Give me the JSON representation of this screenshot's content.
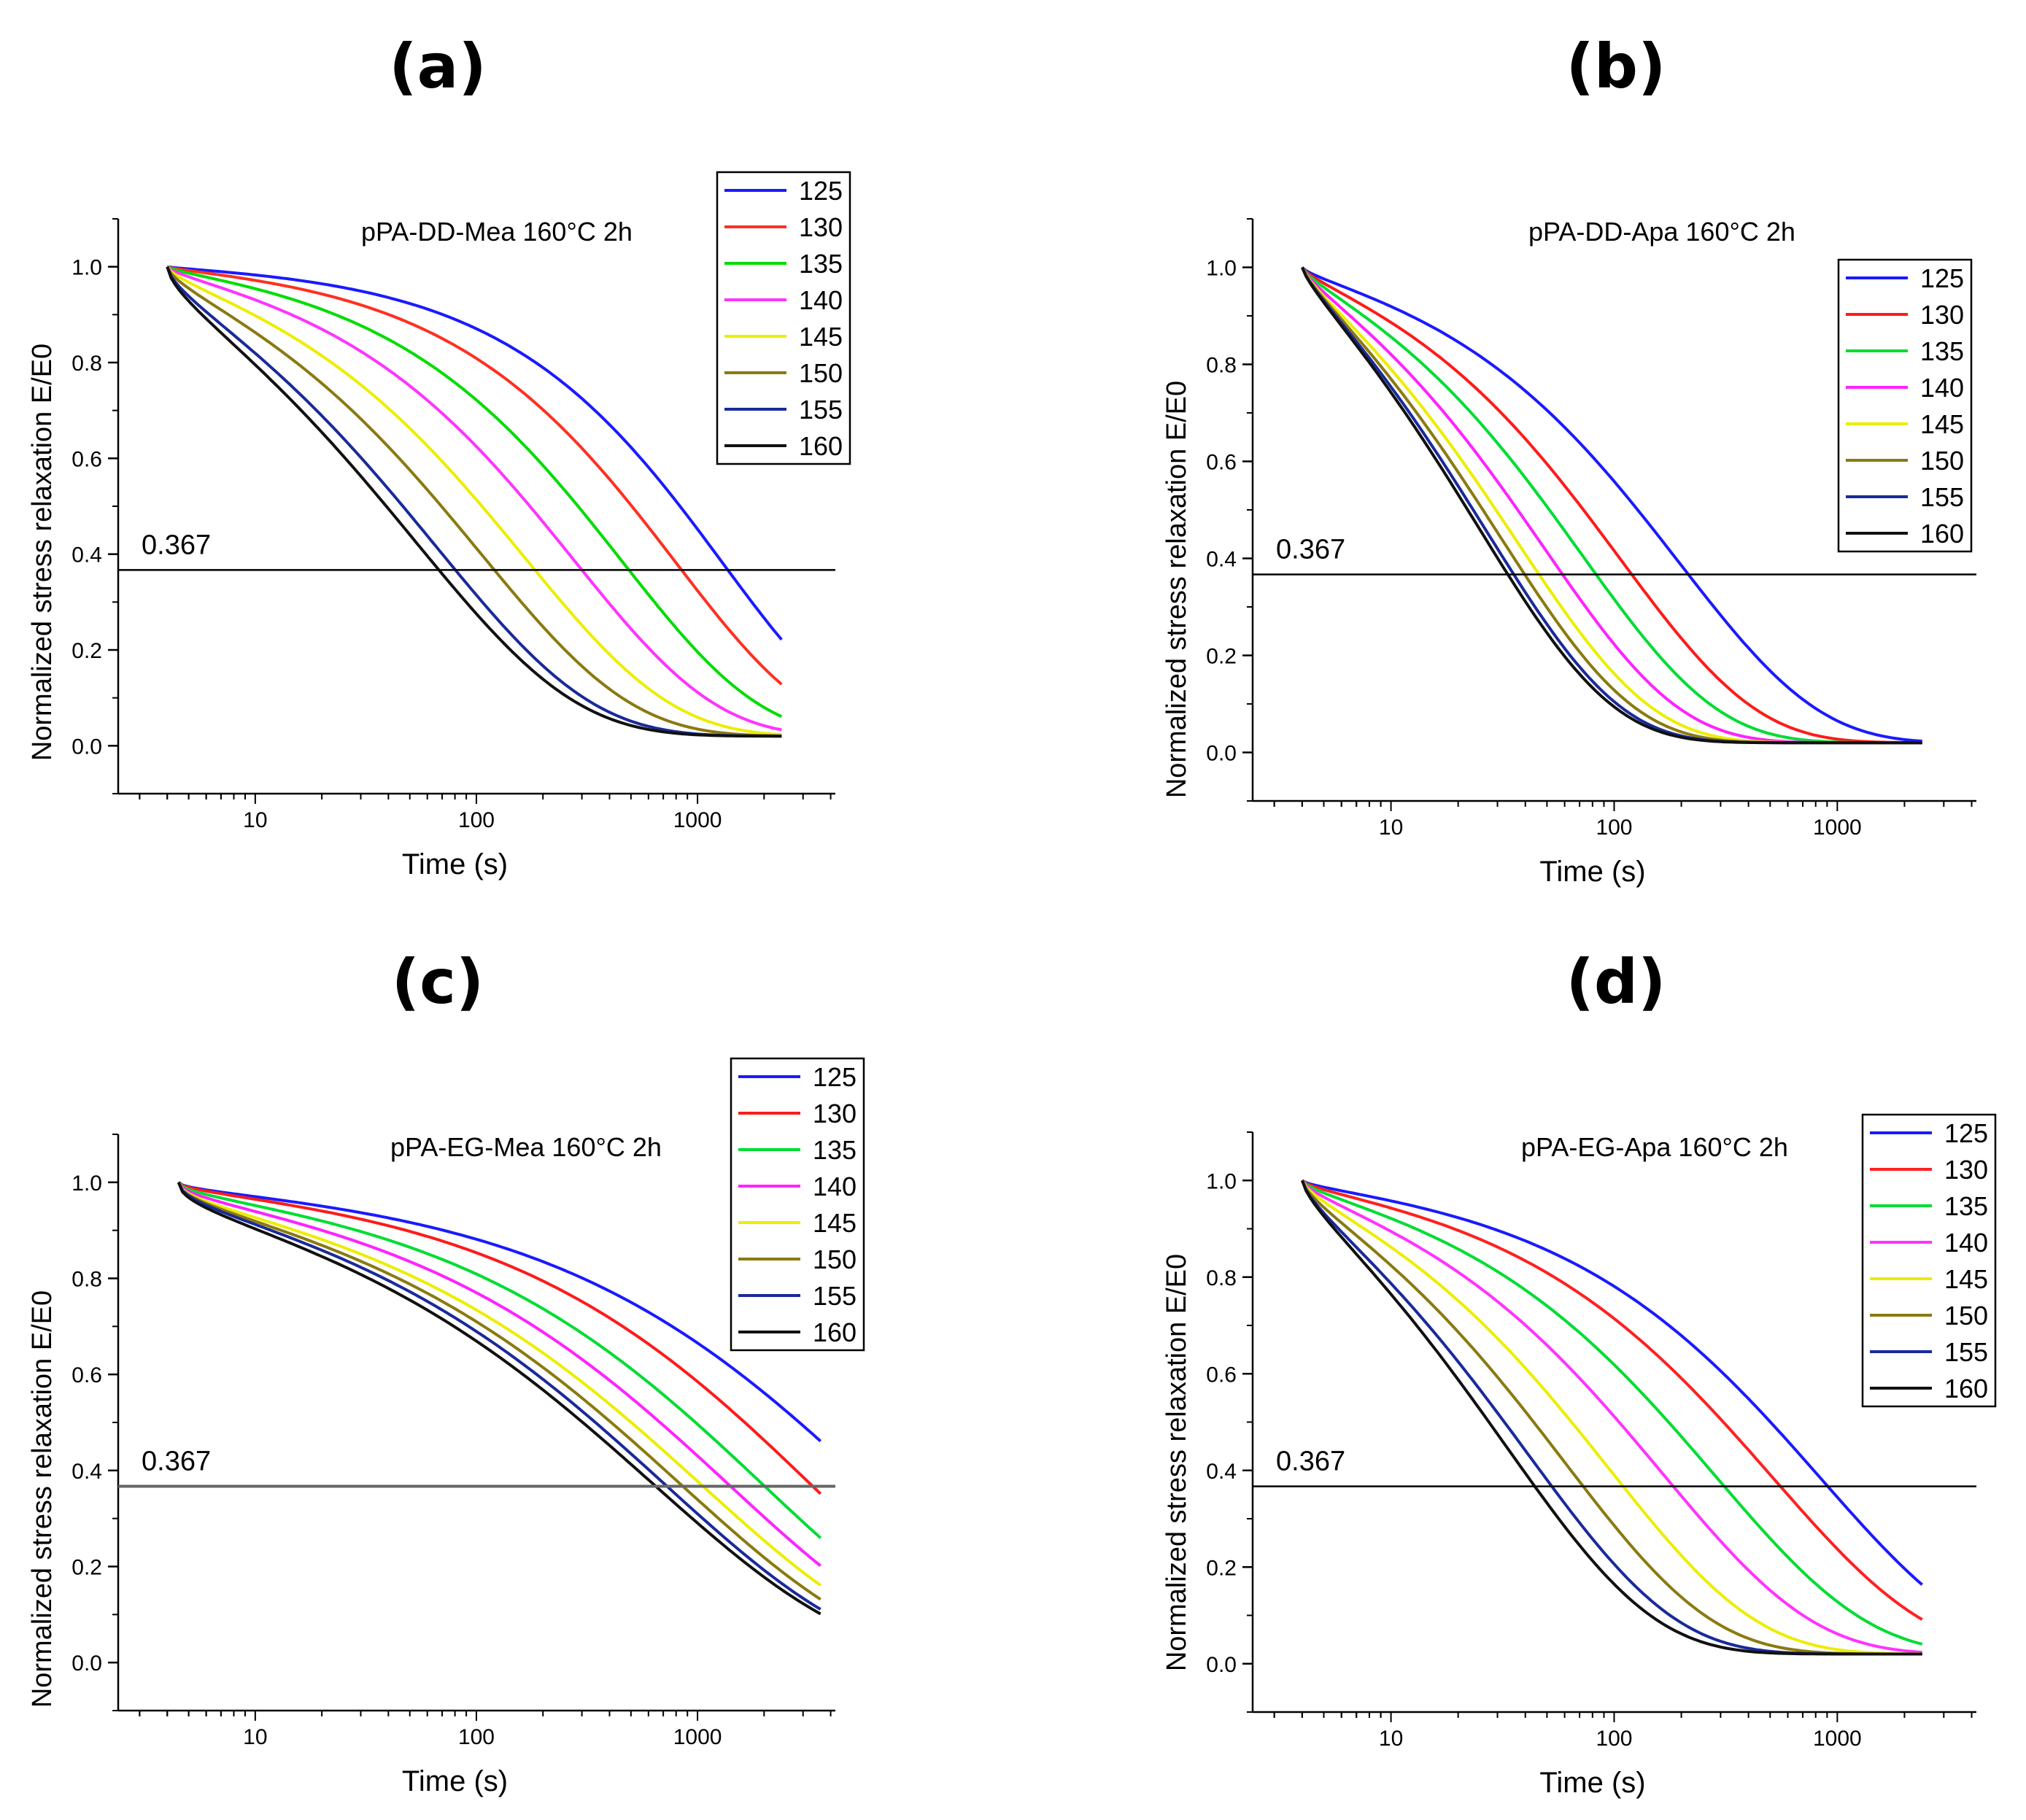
{
  "chart_data": [
    {
      "panel_label": "(a)",
      "type": "line",
      "title": "pPA-DD-Mea 160°C 2h",
      "xlabel": "Time (s)",
      "ylabel": "Normalized stress relaxation E/E0",
      "xscale": "log",
      "xlim": [
        2.4,
        4200
      ],
      "ylim": [
        -0.1,
        1.1
      ],
      "x_ticks": [
        10,
        100,
        1000
      ],
      "x_tick_labels": [
        "10",
        "100",
        "1000"
      ],
      "y_ticks": [
        0,
        0.2,
        0.4,
        0.6,
        0.8,
        1.0
      ],
      "y_tick_labels": [
        "0.0",
        "0.2",
        "0.4",
        "0.6",
        "0.8",
        "1.0"
      ],
      "reference_line": {
        "y": 0.367,
        "label": "0.367"
      },
      "legend_position": "top-right",
      "x_range": [
        4,
        2400
      ],
      "series": [
        {
          "name": "125",
          "color": "#1a1aff",
          "tau": 1300,
          "beta": 0.75,
          "offset": 0.02
        },
        {
          "name": "130",
          "color": "#ff3020",
          "tau": 800,
          "beta": 0.72,
          "offset": 0.02
        },
        {
          "name": "135",
          "color": "#00dd00",
          "tau": 460,
          "beta": 0.7,
          "offset": 0.02
        },
        {
          "name": "140",
          "color": "#ff33ff",
          "tau": 280,
          "beta": 0.68,
          "offset": 0.02
        },
        {
          "name": "145",
          "color": "#eded00",
          "tau": 170,
          "beta": 0.66,
          "offset": 0.02
        },
        {
          "name": "150",
          "color": "#8a7a10",
          "tau": 110,
          "beta": 0.65,
          "offset": 0.02
        },
        {
          "name": "155",
          "color": "#1a2a9a",
          "tau": 72,
          "beta": 0.64,
          "offset": 0.02
        },
        {
          "name": "160",
          "color": "#111111",
          "tau": 60,
          "beta": 0.63,
          "offset": 0.02
        }
      ]
    },
    {
      "panel_label": "(b)",
      "type": "line",
      "title": "pPA-DD-Apa 160°C 2h",
      "xlabel": "Time (s)",
      "ylabel": "Normalized stress relaxation E/E0",
      "xscale": "log",
      "xlim": [
        2.4,
        4200
      ],
      "ylim": [
        -0.1,
        1.1
      ],
      "x_ticks": [
        10,
        100,
        1000
      ],
      "x_tick_labels": [
        "10",
        "100",
        "1000"
      ],
      "y_ticks": [
        0,
        0.2,
        0.4,
        0.6,
        0.8,
        1.0
      ],
      "y_tick_labels": [
        "0.0",
        "0.2",
        "0.4",
        "0.6",
        "0.8",
        "1.0"
      ],
      "reference_line": {
        "y": 0.367,
        "label": "0.367"
      },
      "legend_position": "top-right",
      "x_range": [
        4,
        2400
      ],
      "series": [
        {
          "name": "125",
          "color": "#1a1aff",
          "tau": 200,
          "beta": 0.7,
          "offset": 0.02
        },
        {
          "name": "130",
          "color": "#ff1a1a",
          "tau": 110,
          "beta": 0.72,
          "offset": 0.02
        },
        {
          "name": "135",
          "color": "#00dd33",
          "tau": 75,
          "beta": 0.73,
          "offset": 0.02
        },
        {
          "name": "140",
          "color": "#ff22ff",
          "tau": 52,
          "beta": 0.74,
          "offset": 0.02
        },
        {
          "name": "145",
          "color": "#eded00",
          "tau": 40,
          "beta": 0.75,
          "offset": 0.02
        },
        {
          "name": "150",
          "color": "#8a7a10",
          "tau": 34,
          "beta": 0.76,
          "offset": 0.02
        },
        {
          "name": "155",
          "color": "#1a2a9a",
          "tau": 30,
          "beta": 0.77,
          "offset": 0.02
        },
        {
          "name": "160",
          "color": "#111111",
          "tau": 28,
          "beta": 0.77,
          "offset": 0.02
        }
      ]
    },
    {
      "panel_label": "(c)",
      "type": "line",
      "title": "pPA-EG-Mea 160°C 2h",
      "xlabel": "Time (s)",
      "ylabel": "Normalized stress relaxation E/E0",
      "xscale": "log",
      "xlim": [
        2.4,
        4200
      ],
      "ylim": [
        -0.1,
        1.1
      ],
      "x_ticks": [
        10,
        100,
        1000
      ],
      "x_tick_labels": [
        "10",
        "100",
        "1000"
      ],
      "y_ticks": [
        0,
        0.2,
        0.4,
        0.6,
        0.8,
        1.0
      ],
      "y_tick_labels": [
        "0.0",
        "0.2",
        "0.4",
        "0.6",
        "0.8",
        "1.0"
      ],
      "reference_line": {
        "y": 0.367,
        "label": "0.367"
      },
      "legend_position": "top-right",
      "x_range": [
        4.5,
        3600
      ],
      "series": [
        {
          "name": "125",
          "color": "#1a1aff",
          "tau": 6000,
          "beta": 0.5,
          "offset": 0.0
        },
        {
          "name": "130",
          "color": "#ff1a1a",
          "tau": 3300,
          "beta": 0.52,
          "offset": 0.0
        },
        {
          "name": "135",
          "color": "#00dd33",
          "tau": 2000,
          "beta": 0.51,
          "offset": 0.0
        },
        {
          "name": "140",
          "color": "#ff22ff",
          "tau": 1400,
          "beta": 0.5,
          "offset": 0.0
        },
        {
          "name": "145",
          "color": "#eded00",
          "tau": 1050,
          "beta": 0.49,
          "offset": 0.0
        },
        {
          "name": "150",
          "color": "#8a7a10",
          "tau": 850,
          "beta": 0.49,
          "offset": 0.0
        },
        {
          "name": "155",
          "color": "#1a2a9a",
          "tau": 720,
          "beta": 0.49,
          "offset": 0.0
        },
        {
          "name": "160",
          "color": "#111111",
          "tau": 640,
          "beta": 0.48,
          "offset": 0.0
        }
      ]
    },
    {
      "panel_label": "(d)",
      "type": "line",
      "title": "pPA-EG-Apa 160°C 2h",
      "xlabel": "Time (s)",
      "ylabel": "Normalized stress relaxation E/E0",
      "xscale": "log",
      "xlim": [
        2.4,
        4200
      ],
      "ylim": [
        -0.1,
        1.1
      ],
      "x_ticks": [
        10,
        100,
        1000
      ],
      "x_tick_labels": [
        "10",
        "100",
        "1000"
      ],
      "y_ticks": [
        0,
        0.2,
        0.4,
        0.6,
        0.8,
        1.0
      ],
      "y_tick_labels": [
        "0.0",
        "0.2",
        "0.4",
        "0.6",
        "0.8",
        "1.0"
      ],
      "reference_line": {
        "y": 0.367,
        "label": "0.367"
      },
      "legend_position": "top-right",
      "x_range": [
        4,
        2400
      ],
      "series": [
        {
          "name": "125",
          "color": "#1a1aff",
          "tau": 850,
          "beta": 0.63,
          "offset": 0.02
        },
        {
          "name": "130",
          "color": "#ff2020",
          "tau": 520,
          "beta": 0.63,
          "offset": 0.02
        },
        {
          "name": "135",
          "color": "#00dd33",
          "tau": 290,
          "beta": 0.64,
          "offset": 0.02
        },
        {
          "name": "140",
          "color": "#ff33ff",
          "tau": 170,
          "beta": 0.65,
          "offset": 0.02
        },
        {
          "name": "145",
          "color": "#eded00",
          "tau": 100,
          "beta": 0.67,
          "offset": 0.02
        },
        {
          "name": "150",
          "color": "#8a7a10",
          "tau": 65,
          "beta": 0.68,
          "offset": 0.02
        },
        {
          "name": "155",
          "color": "#1a2a9a",
          "tau": 46,
          "beta": 0.69,
          "offset": 0.02
        },
        {
          "name": "160",
          "color": "#111111",
          "tau": 38,
          "beta": 0.7,
          "offset": 0.02
        }
      ]
    }
  ]
}
